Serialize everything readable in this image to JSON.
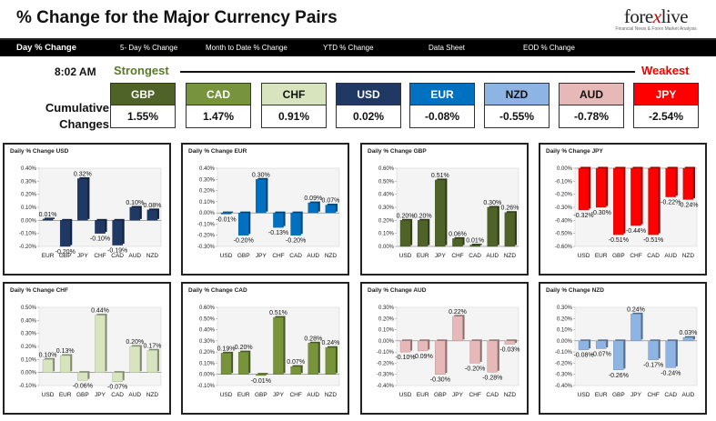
{
  "header": {
    "title": "% Change for the Major Currency Pairs",
    "logo_main": "fore",
    "logo_x": "x",
    "logo_rest": "live",
    "logo_tagline": "Financial News & Forex Market Analysis"
  },
  "nav": {
    "tabs": [
      {
        "label": "Day % Change",
        "active": true
      },
      {
        "label": "5- Day % Change",
        "active": false
      },
      {
        "label": "Month to Date % Change",
        "active": false
      },
      {
        "label": "YTD % Change",
        "active": false
      },
      {
        "label": "Data Sheet",
        "active": false
      },
      {
        "label": "EOD % Change",
        "active": false
      }
    ]
  },
  "summary": {
    "time": "8:02 AM",
    "strongest_label": "Strongest",
    "weakest_label": "Weakest",
    "cumulative_label_1": "Cumulative",
    "cumulative_label_2": "Changes",
    "currencies": [
      {
        "code": "GBP",
        "value": "1.55%",
        "color": "#4f6228",
        "text_color": "#ffffff"
      },
      {
        "code": "CAD",
        "value": "1.47%",
        "color": "#77933c",
        "text_color": "#ffffff"
      },
      {
        "code": "CHF",
        "value": "0.91%",
        "color": "#d7e4bd",
        "text_color": "#111111"
      },
      {
        "code": "USD",
        "value": "0.02%",
        "color": "#1f3864",
        "text_color": "#ffffff"
      },
      {
        "code": "EUR",
        "value": "-0.08%",
        "color": "#0070c0",
        "text_color": "#ffffff"
      },
      {
        "code": "NZD",
        "value": "-0.55%",
        "color": "#8db4e2",
        "text_color": "#111111"
      },
      {
        "code": "AUD",
        "value": "-0.78%",
        "color": "#e6b9b8",
        "text_color": "#111111"
      },
      {
        "code": "JPY",
        "value": "-2.54%",
        "color": "#ff0000",
        "text_color": "#ffffff"
      }
    ]
  },
  "chart_data": [
    {
      "type": "bar",
      "title": "Daily % Change USD",
      "categories": [
        "EUR",
        "GBP",
        "JPY",
        "CHF",
        "CAD",
        "AUD",
        "NZD"
      ],
      "values": [
        0.01,
        -0.2,
        0.32,
        -0.1,
        -0.19,
        0.1,
        0.08
      ],
      "labels": [
        "0.01%",
        "-0.20%",
        "0.32%",
        "-0.10%",
        "-0.19%",
        "0.10%",
        "0.08%"
      ],
      "ylim": [
        -0.2,
        0.4
      ],
      "yticks": [
        "-0.20%",
        "-0.10%",
        "0.00%",
        "0.10%",
        "0.20%",
        "0.30%",
        "0.40%"
      ],
      "color": "#1f3864"
    },
    {
      "type": "bar",
      "title": "Daily % Change EUR",
      "categories": [
        "USD",
        "GBP",
        "JPY",
        "CHF",
        "CAD",
        "AUD",
        "NZD"
      ],
      "values": [
        -0.01,
        -0.2,
        0.3,
        -0.13,
        -0.2,
        0.09,
        0.07
      ],
      "labels": [
        "-0.01%",
        "-0.20%",
        "0.30%",
        "-0.13%",
        "-0.20%",
        "0.09%",
        "0.07%"
      ],
      "ylim": [
        -0.3,
        0.4
      ],
      "yticks": [
        "-0.30%",
        "-0.20%",
        "-0.10%",
        "0.00%",
        "0.10%",
        "0.20%",
        "0.30%",
        "0.40%"
      ],
      "color": "#0070c0"
    },
    {
      "type": "bar",
      "title": "Daily % Change GBP",
      "categories": [
        "USD",
        "EUR",
        "JPY",
        "CHF",
        "CAD",
        "AUD",
        "NZD"
      ],
      "values": [
        0.2,
        0.2,
        0.51,
        0.06,
        0.01,
        0.3,
        0.26
      ],
      "labels": [
        "0.20%",
        "0.20%",
        "0.51%",
        "0.06%",
        "0.01%",
        "0.30%",
        "0.26%"
      ],
      "ylim": [
        0,
        0.6
      ],
      "yticks": [
        "0.00%",
        "0.10%",
        "0.20%",
        "0.30%",
        "0.40%",
        "0.50%",
        "0.60%"
      ],
      "color": "#4f6228"
    },
    {
      "type": "bar",
      "title": "Daily % Change JPY",
      "categories": [
        "USD",
        "EUR",
        "GBP",
        "CHF",
        "CAD",
        "AUD",
        "NZD"
      ],
      "values": [
        -0.32,
        -0.3,
        -0.51,
        -0.44,
        -0.51,
        -0.22,
        -0.24
      ],
      "labels": [
        "-0.32%",
        "-0.30%",
        "-0.51%",
        "-0.44%",
        "-0.51%",
        "-0.22%",
        "-0.24%"
      ],
      "ylim": [
        -0.6,
        0
      ],
      "yticks": [
        "-0.60%",
        "-0.50%",
        "-0.40%",
        "-0.30%",
        "-0.20%",
        "-0.10%",
        "0.00%"
      ],
      "color": "#ff0000"
    },
    {
      "type": "bar",
      "title": "Daily % Change CHF",
      "categories": [
        "USD",
        "EUR",
        "GBP",
        "JPY",
        "CAD",
        "AUD",
        "NZD"
      ],
      "values": [
        0.1,
        0.13,
        -0.06,
        0.44,
        -0.07,
        0.2,
        0.17
      ],
      "labels": [
        "0.10%",
        "0.13%",
        "-0.06%",
        "0.44%",
        "-0.07%",
        "0.20%",
        "0.17%"
      ],
      "ylim": [
        -0.1,
        0.5
      ],
      "yticks": [
        "-0.10%",
        "0.00%",
        "0.10%",
        "0.20%",
        "0.30%",
        "0.40%",
        "0.50%"
      ],
      "color": "#d7e4bd"
    },
    {
      "type": "bar",
      "title": "Daily % Change CAD",
      "categories": [
        "USD",
        "EUR",
        "GBP",
        "JPY",
        "CHF",
        "AUD",
        "NZD"
      ],
      "values": [
        0.19,
        0.2,
        -0.01,
        0.51,
        0.07,
        0.28,
        0.24
      ],
      "labels": [
        "0.19%",
        "0.20%",
        "-0.01%",
        "0.51%",
        "0.07%",
        "0.28%",
        "0.24%"
      ],
      "ylim": [
        -0.1,
        0.6
      ],
      "yticks": [
        "-0.10%",
        "0.00%",
        "0.10%",
        "0.20%",
        "0.30%",
        "0.40%",
        "0.50%",
        "0.60%"
      ],
      "color": "#77933c"
    },
    {
      "type": "bar",
      "title": "Daily % Change AUD",
      "categories": [
        "USD",
        "EUR",
        "GBP",
        "JPY",
        "CHF",
        "CAD",
        "NZD"
      ],
      "values": [
        -0.1,
        -0.09,
        -0.3,
        0.22,
        -0.2,
        -0.28,
        -0.03
      ],
      "labels": [
        "-0.10%",
        "-0.09%",
        "-0.30%",
        "0.22%",
        "-0.20%",
        "-0.28%",
        "-0.03%"
      ],
      "ylim": [
        -0.4,
        0.3
      ],
      "yticks": [
        "-0.40%",
        "-0.30%",
        "-0.20%",
        "-0.10%",
        "0.00%",
        "0.10%",
        "0.20%",
        "0.30%"
      ],
      "color": "#e6b9b8"
    },
    {
      "type": "bar",
      "title": "Daily % Change NZD",
      "categories": [
        "USD",
        "EUR",
        "GBP",
        "JPY",
        "CHF",
        "CAD",
        "AUD"
      ],
      "values": [
        -0.08,
        -0.07,
        -0.26,
        0.24,
        -0.17,
        -0.24,
        0.03
      ],
      "labels": [
        "-0.08%",
        "-0.07%",
        "-0.26%",
        "0.24%",
        "-0.17%",
        "-0.24%",
        "0.03%"
      ],
      "ylim": [
        -0.4,
        0.3
      ],
      "yticks": [
        "-0.40%",
        "-0.30%",
        "-0.20%",
        "-0.10%",
        "0.00%",
        "0.10%",
        "0.20%",
        "0.30%"
      ],
      "color": "#8db4e2"
    }
  ]
}
